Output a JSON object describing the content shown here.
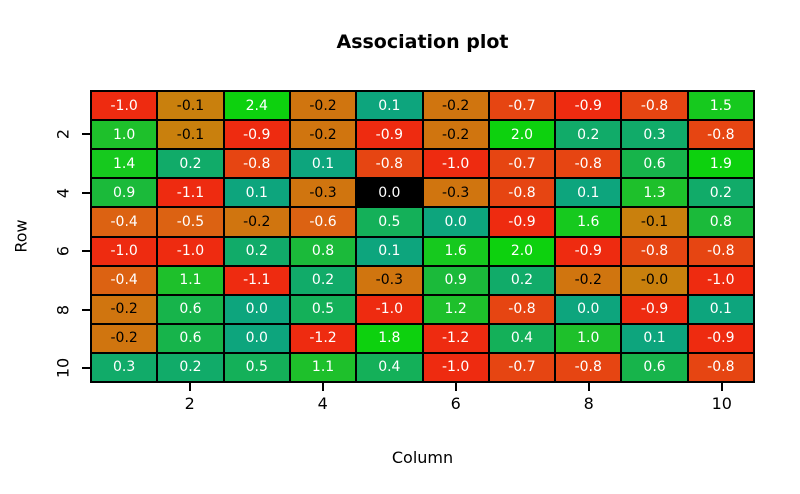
{
  "title": "Association plot",
  "x_axis": {
    "label": "Column",
    "ticks": [
      "2",
      "4",
      "6",
      "8",
      "10"
    ]
  },
  "y_axis": {
    "label": "Row",
    "ticks": [
      "2",
      "4",
      "6",
      "8",
      "10"
    ]
  },
  "chart_data": {
    "type": "heatmap",
    "title": "Association plot",
    "xlabel": "Column",
    "ylabel": "Row",
    "x_range": [
      0.5,
      10.5
    ],
    "y_range": [
      0.5,
      10.5
    ],
    "grid": true,
    "rows": [
      1,
      2,
      3,
      4,
      5,
      6,
      7,
      8,
      9,
      10
    ],
    "columns": [
      1,
      2,
      3,
      4,
      5,
      6,
      7,
      8,
      9,
      10
    ],
    "values": [
      [
        -1.0,
        -0.1,
        2.4,
        -0.2,
        0.1,
        -0.2,
        -0.7,
        -0.9,
        -0.8,
        1.5
      ],
      [
        1.0,
        -0.1,
        -0.9,
        -0.2,
        -0.9,
        -0.2,
        2.0,
        0.2,
        0.3,
        -0.8
      ],
      [
        1.4,
        0.2,
        -0.8,
        0.1,
        -0.8,
        -1.0,
        -0.7,
        -0.8,
        0.6,
        1.9
      ],
      [
        0.9,
        -1.1,
        0.1,
        -0.3,
        0.0,
        -0.3,
        -0.8,
        0.1,
        1.3,
        0.2
      ],
      [
        -0.4,
        -0.5,
        -0.2,
        -0.6,
        0.5,
        0.0,
        -0.9,
        1.6,
        -0.1,
        0.8
      ],
      [
        -1.0,
        -1.0,
        0.2,
        0.8,
        0.1,
        1.6,
        2.0,
        -0.9,
        -0.8,
        -0.8
      ],
      [
        -0.4,
        1.1,
        -1.1,
        0.2,
        -0.3,
        0.9,
        0.2,
        -0.2,
        -0.0,
        -1.0
      ],
      [
        -0.2,
        0.6,
        0.0,
        0.5,
        -1.0,
        1.2,
        -0.8,
        0.0,
        -0.9,
        0.1
      ],
      [
        -0.2,
        0.6,
        0.0,
        -1.2,
        1.8,
        -1.2,
        0.4,
        1.0,
        0.1,
        -0.9
      ],
      [
        0.3,
        0.2,
        0.5,
        1.1,
        0.4,
        -1.0,
        -0.7,
        -0.8,
        0.6,
        -0.8
      ]
    ],
    "cell_labels": [
      [
        "-1.0",
        "-0.1",
        "2.4",
        "-0.2",
        "0.1",
        "-0.2",
        "-0.7",
        "-0.9",
        "-0.8",
        "1.5"
      ],
      [
        "1.0",
        "-0.1",
        "-0.9",
        "-0.2",
        "-0.9",
        "-0.2",
        "2.0",
        "0.2",
        "0.3",
        "-0.8"
      ],
      [
        "1.4",
        "0.2",
        "-0.8",
        "0.1",
        "-0.8",
        "-1.0",
        "-0.7",
        "-0.8",
        "0.6",
        "1.9"
      ],
      [
        "0.9",
        "-1.1",
        "0.1",
        "-0.3",
        "0.0",
        "-0.3",
        "-0.8",
        "0.1",
        "1.3",
        "0.2"
      ],
      [
        "-0.4",
        "-0.5",
        "-0.2",
        "-0.6",
        "0.5",
        "0.0",
        "-0.9",
        "1.6",
        "-0.1",
        "0.8"
      ],
      [
        "-1.0",
        "-1.0",
        "0.2",
        "0.8",
        "0.1",
        "1.6",
        "2.0",
        "-0.9",
        "-0.8",
        "-0.8"
      ],
      [
        "-0.4",
        "1.1",
        "-1.1",
        "0.2",
        "-0.3",
        "0.9",
        "0.2",
        "-0.2",
        "-0.0",
        "-1.0"
      ],
      [
        "-0.2",
        "0.6",
        "0.0",
        "0.5",
        "-1.0",
        "1.2",
        "-0.8",
        "0.0",
        "-0.9",
        "0.1"
      ],
      [
        "-0.2",
        "0.6",
        "0.0",
        "-1.2",
        "1.8",
        "-1.2",
        "0.4",
        "1.0",
        "0.1",
        "-0.9"
      ],
      [
        "0.3",
        "0.2",
        "0.5",
        "1.1",
        "0.4",
        "-1.0",
        "-0.7",
        "-0.8",
        "0.6",
        "-0.8"
      ]
    ],
    "special_cells": [
      {
        "row": 4,
        "col": 5,
        "color": "#000000",
        "note": "black highlighted cell"
      }
    ],
    "colors": {
      "negative_buckets": [
        {
          "min": -1.25,
          "max": -0.85,
          "color": "#EE2B10"
        },
        {
          "min": -0.85,
          "max": -0.65,
          "color": "#E64512"
        },
        {
          "min": -0.65,
          "max": -0.35,
          "color": "#DC6212"
        },
        {
          "min": -0.35,
          "max": -0.15,
          "color": "#D0750F"
        },
        {
          "min": -0.15,
          "max": 0.0001,
          "color": "#C9800D"
        }
      ],
      "positive_buckets": [
        {
          "min": 0.0,
          "max": 0.15,
          "color": "#0DA57D"
        },
        {
          "min": 0.15,
          "max": 0.35,
          "color": "#11AB69"
        },
        {
          "min": 0.35,
          "max": 0.55,
          "color": "#14B059"
        },
        {
          "min": 0.55,
          "max": 0.75,
          "color": "#17B44B"
        },
        {
          "min": 0.75,
          "max": 0.95,
          "color": "#1BBA3A"
        },
        {
          "min": 0.95,
          "max": 1.35,
          "color": "#1EC02B"
        },
        {
          "min": 1.35,
          "max": 1.7,
          "color": "#16C91E"
        },
        {
          "min": 1.7,
          "max": 3.0,
          "color": "#0DD10E"
        }
      ],
      "dark_text": "#000000",
      "light_text": "#FFFFFF",
      "grid_line": "#000000",
      "background": "#FFFFFF"
    },
    "legend": "none"
  }
}
